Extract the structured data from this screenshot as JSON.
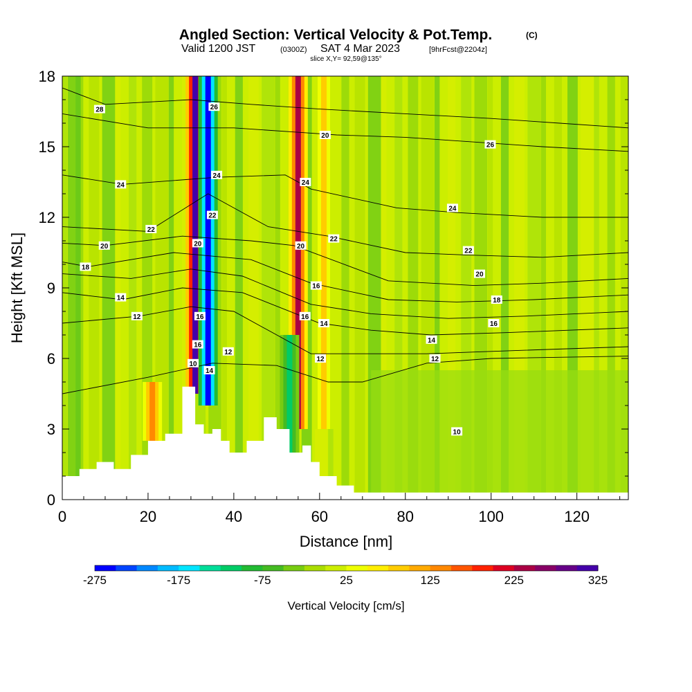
{
  "title": "Angled Section: Vertical Velocity & Pot.Temp.",
  "title_unit": "(C)",
  "subtitle": {
    "valid_prefix": "Valid 1200 JST",
    "utc": "(0300Z)",
    "date": "SAT 4 Mar 2023",
    "forecast": "[9hrFcst@2204z]"
  },
  "slice_label": "slice X,Y= 92,59@135°",
  "chart_data": {
    "type": "heatmap",
    "xlabel": "Distance [nm]",
    "ylabel": "Height [Kft MSL]",
    "xlim": [
      0,
      132
    ],
    "ylim": [
      0,
      18
    ],
    "x_ticks": [
      0,
      20,
      40,
      60,
      80,
      100,
      120
    ],
    "y_ticks": [
      0,
      3,
      6,
      9,
      12,
      15,
      18
    ],
    "grid": false,
    "colorbar": {
      "label": "Vertical Velocity [cm/s]",
      "min": -275,
      "max": 325,
      "tick_values": [
        -275,
        -175,
        -75,
        25,
        125,
        225,
        325
      ],
      "tick_labels": [
        "-275",
        "-175",
        "-75",
        "25",
        "125",
        "225",
        "325"
      ],
      "colors": [
        "#0000ff",
        "#0044ff",
        "#0088ff",
        "#00bbff",
        "#00e5ff",
        "#00dd99",
        "#00cc66",
        "#22bb33",
        "#44bb22",
        "#77cc11",
        "#aadd00",
        "#ccee00",
        "#eeff00",
        "#ffee00",
        "#ffcc00",
        "#ffaa00",
        "#ff8800",
        "#ff5500",
        "#ff2200",
        "#dd0022",
        "#aa0044",
        "#880066",
        "#660088",
        "#4400aa"
      ]
    },
    "terrain_profile": {
      "x": [
        0,
        4,
        4,
        8,
        8,
        12,
        12,
        16,
        16,
        20,
        20,
        24,
        24,
        28,
        28,
        31,
        31,
        33,
        33,
        35,
        35,
        37,
        37,
        39,
        39,
        43,
        43,
        47,
        47,
        50,
        50,
        53,
        53,
        56,
        56,
        58,
        58,
        60,
        60,
        64,
        64,
        68,
        68,
        72,
        72,
        132
      ],
      "y": [
        1,
        1,
        1.3,
        1.3,
        1.6,
        1.6,
        1.3,
        1.3,
        1.9,
        1.9,
        2.5,
        2.5,
        2.8,
        2.8,
        4.8,
        4.8,
        3.2,
        3.2,
        2.8,
        2.8,
        3.0,
        3.0,
        2.5,
        2.5,
        2.0,
        2.0,
        2.5,
        2.5,
        3.5,
        3.5,
        3.0,
        3.0,
        2.0,
        2.0,
        2.3,
        2.3,
        1.6,
        1.6,
        1.0,
        1.0,
        0.6,
        0.6,
        0.3,
        0.3,
        0.3,
        0.3
      ]
    },
    "vertical_velocity_features": [
      {
        "x": 31,
        "ymin": 4.5,
        "ymax": 18,
        "value": 325
      },
      {
        "x": 34,
        "ymin": 4.0,
        "ymax": 18,
        "value": -275
      },
      {
        "x": 55,
        "ymin": 3.0,
        "ymax": 18,
        "value": 225
      },
      {
        "x": 53,
        "ymin": 2.0,
        "ymax": 7,
        "value": -125
      },
      {
        "x": 21,
        "ymin": 2.5,
        "ymax": 5,
        "value": 125
      },
      {
        "x": 61,
        "ymin": 3.0,
        "ymax": 18,
        "value": 75
      }
    ],
    "series": [
      {
        "name": "10",
        "value": 10,
        "x": [
          0,
          20,
          35,
          50,
          62,
          70,
          85,
          100,
          132
        ],
        "y": [
          4.5,
          5.2,
          5.8,
          5.7,
          5.0,
          5.0,
          5.8,
          6.0,
          6.1
        ]
      },
      {
        "name": "12",
        "value": 12,
        "x": [
          0,
          18,
          30,
          40,
          58,
          70,
          85,
          100,
          132
        ],
        "y": [
          7.5,
          7.8,
          8.2,
          8.0,
          6.2,
          6.2,
          6.2,
          6.3,
          6.5
        ]
      },
      {
        "name": "14",
        "value": 14,
        "x": [
          0,
          14,
          28,
          42,
          60,
          72,
          86,
          104,
          132
        ],
        "y": [
          8.8,
          8.5,
          9.0,
          8.8,
          7.5,
          7.2,
          7.0,
          7.1,
          7.3
        ]
      },
      {
        "name": "16",
        "value": 16,
        "x": [
          0,
          16,
          30,
          42,
          58,
          72,
          90,
          108,
          132
        ],
        "y": [
          9.6,
          9.4,
          9.8,
          9.5,
          8.3,
          7.9,
          7.7,
          7.8,
          8.0
        ]
      },
      {
        "name": "18",
        "value": 18,
        "x": [
          0,
          6,
          26,
          44,
          58,
          76,
          92,
          110,
          132
        ],
        "y": [
          10.1,
          9.9,
          10.5,
          10.2,
          9.2,
          8.5,
          8.4,
          8.5,
          8.7
        ]
      },
      {
        "name": "20",
        "value": 20,
        "x": [
          0,
          10,
          28,
          44,
          54,
          76,
          96,
          112,
          132
        ],
        "y": [
          10.9,
          10.8,
          11.2,
          11.0,
          10.8,
          9.3,
          9.1,
          9.2,
          9.4
        ]
      },
      {
        "name": "22",
        "value": 22,
        "x": [
          0,
          20,
          34,
          48,
          62,
          80,
          94,
          112,
          132
        ],
        "y": [
          11.6,
          11.4,
          13.0,
          11.6,
          11.2,
          10.5,
          10.4,
          10.3,
          10.5
        ]
      },
      {
        "name": "24",
        "value": 24,
        "x": [
          0,
          14,
          36,
          52,
          58,
          78,
          92,
          112,
          132
        ],
        "y": [
          13.8,
          13.4,
          13.7,
          13.8,
          13.2,
          12.4,
          12.2,
          12.0,
          12.0
        ]
      },
      {
        "name": "26",
        "value": 26,
        "x": [
          0,
          20,
          40,
          56,
          64,
          80,
          96,
          112,
          132
        ],
        "y": [
          16.4,
          15.8,
          15.8,
          15.6,
          15.5,
          15.4,
          15.2,
          15.0,
          14.8
        ]
      },
      {
        "name": "28",
        "value": 28,
        "x": [
          0,
          10,
          30,
          44,
          60,
          80,
          100,
          116,
          132
        ],
        "y": [
          17.5,
          16.8,
          17.0,
          16.8,
          16.6,
          16.4,
          16.2,
          16.0,
          15.8
        ]
      }
    ],
    "contour_labels": [
      {
        "text": "28",
        "x": 8.7,
        "y": 16.6
      },
      {
        "text": "24",
        "x": 13.6,
        "y": 13.4
      },
      {
        "text": "22",
        "x": 20.7,
        "y": 11.5
      },
      {
        "text": "20",
        "x": 9.8,
        "y": 10.8
      },
      {
        "text": "18",
        "x": 5.4,
        "y": 9.9
      },
      {
        "text": "14",
        "x": 13.6,
        "y": 8.6
      },
      {
        "text": "12",
        "x": 17.4,
        "y": 7.8
      },
      {
        "text": "26",
        "x": 35.4,
        "y": 16.7
      },
      {
        "text": "24",
        "x": 36.0,
        "y": 13.8
      },
      {
        "text": "22",
        "x": 35.0,
        "y": 12.1
      },
      {
        "text": "20",
        "x": 31.6,
        "y": 10.9
      },
      {
        "text": "16",
        "x": 32.1,
        "y": 7.8
      },
      {
        "text": "16",
        "x": 31.6,
        "y": 6.6
      },
      {
        "text": "10",
        "x": 30.5,
        "y": 5.8
      },
      {
        "text": "14",
        "x": 34.3,
        "y": 5.5
      },
      {
        "text": "12",
        "x": 38.7,
        "y": 6.3
      },
      {
        "text": "20",
        "x": 61.3,
        "y": 15.5
      },
      {
        "text": "24",
        "x": 56.7,
        "y": 13.5
      },
      {
        "text": "20",
        "x": 55.6,
        "y": 10.8
      },
      {
        "text": "22",
        "x": 63.3,
        "y": 11.1
      },
      {
        "text": "16",
        "x": 59.2,
        "y": 9.1
      },
      {
        "text": "16",
        "x": 56.6,
        "y": 7.8
      },
      {
        "text": "14",
        "x": 61.0,
        "y": 7.5
      },
      {
        "text": "12",
        "x": 60.2,
        "y": 6.0
      },
      {
        "text": "26",
        "x": 99.8,
        "y": 15.1
      },
      {
        "text": "24",
        "x": 91.0,
        "y": 12.4
      },
      {
        "text": "22",
        "x": 94.7,
        "y": 10.6
      },
      {
        "text": "20",
        "x": 97.3,
        "y": 9.6
      },
      {
        "text": "18",
        "x": 101.3,
        "y": 8.5
      },
      {
        "text": "16",
        "x": 100.6,
        "y": 7.5
      },
      {
        "text": "14",
        "x": 86.1,
        "y": 6.8
      },
      {
        "text": "12",
        "x": 86.9,
        "y": 6.0
      },
      {
        "text": "10",
        "x": 92.0,
        "y": 2.9
      }
    ]
  }
}
